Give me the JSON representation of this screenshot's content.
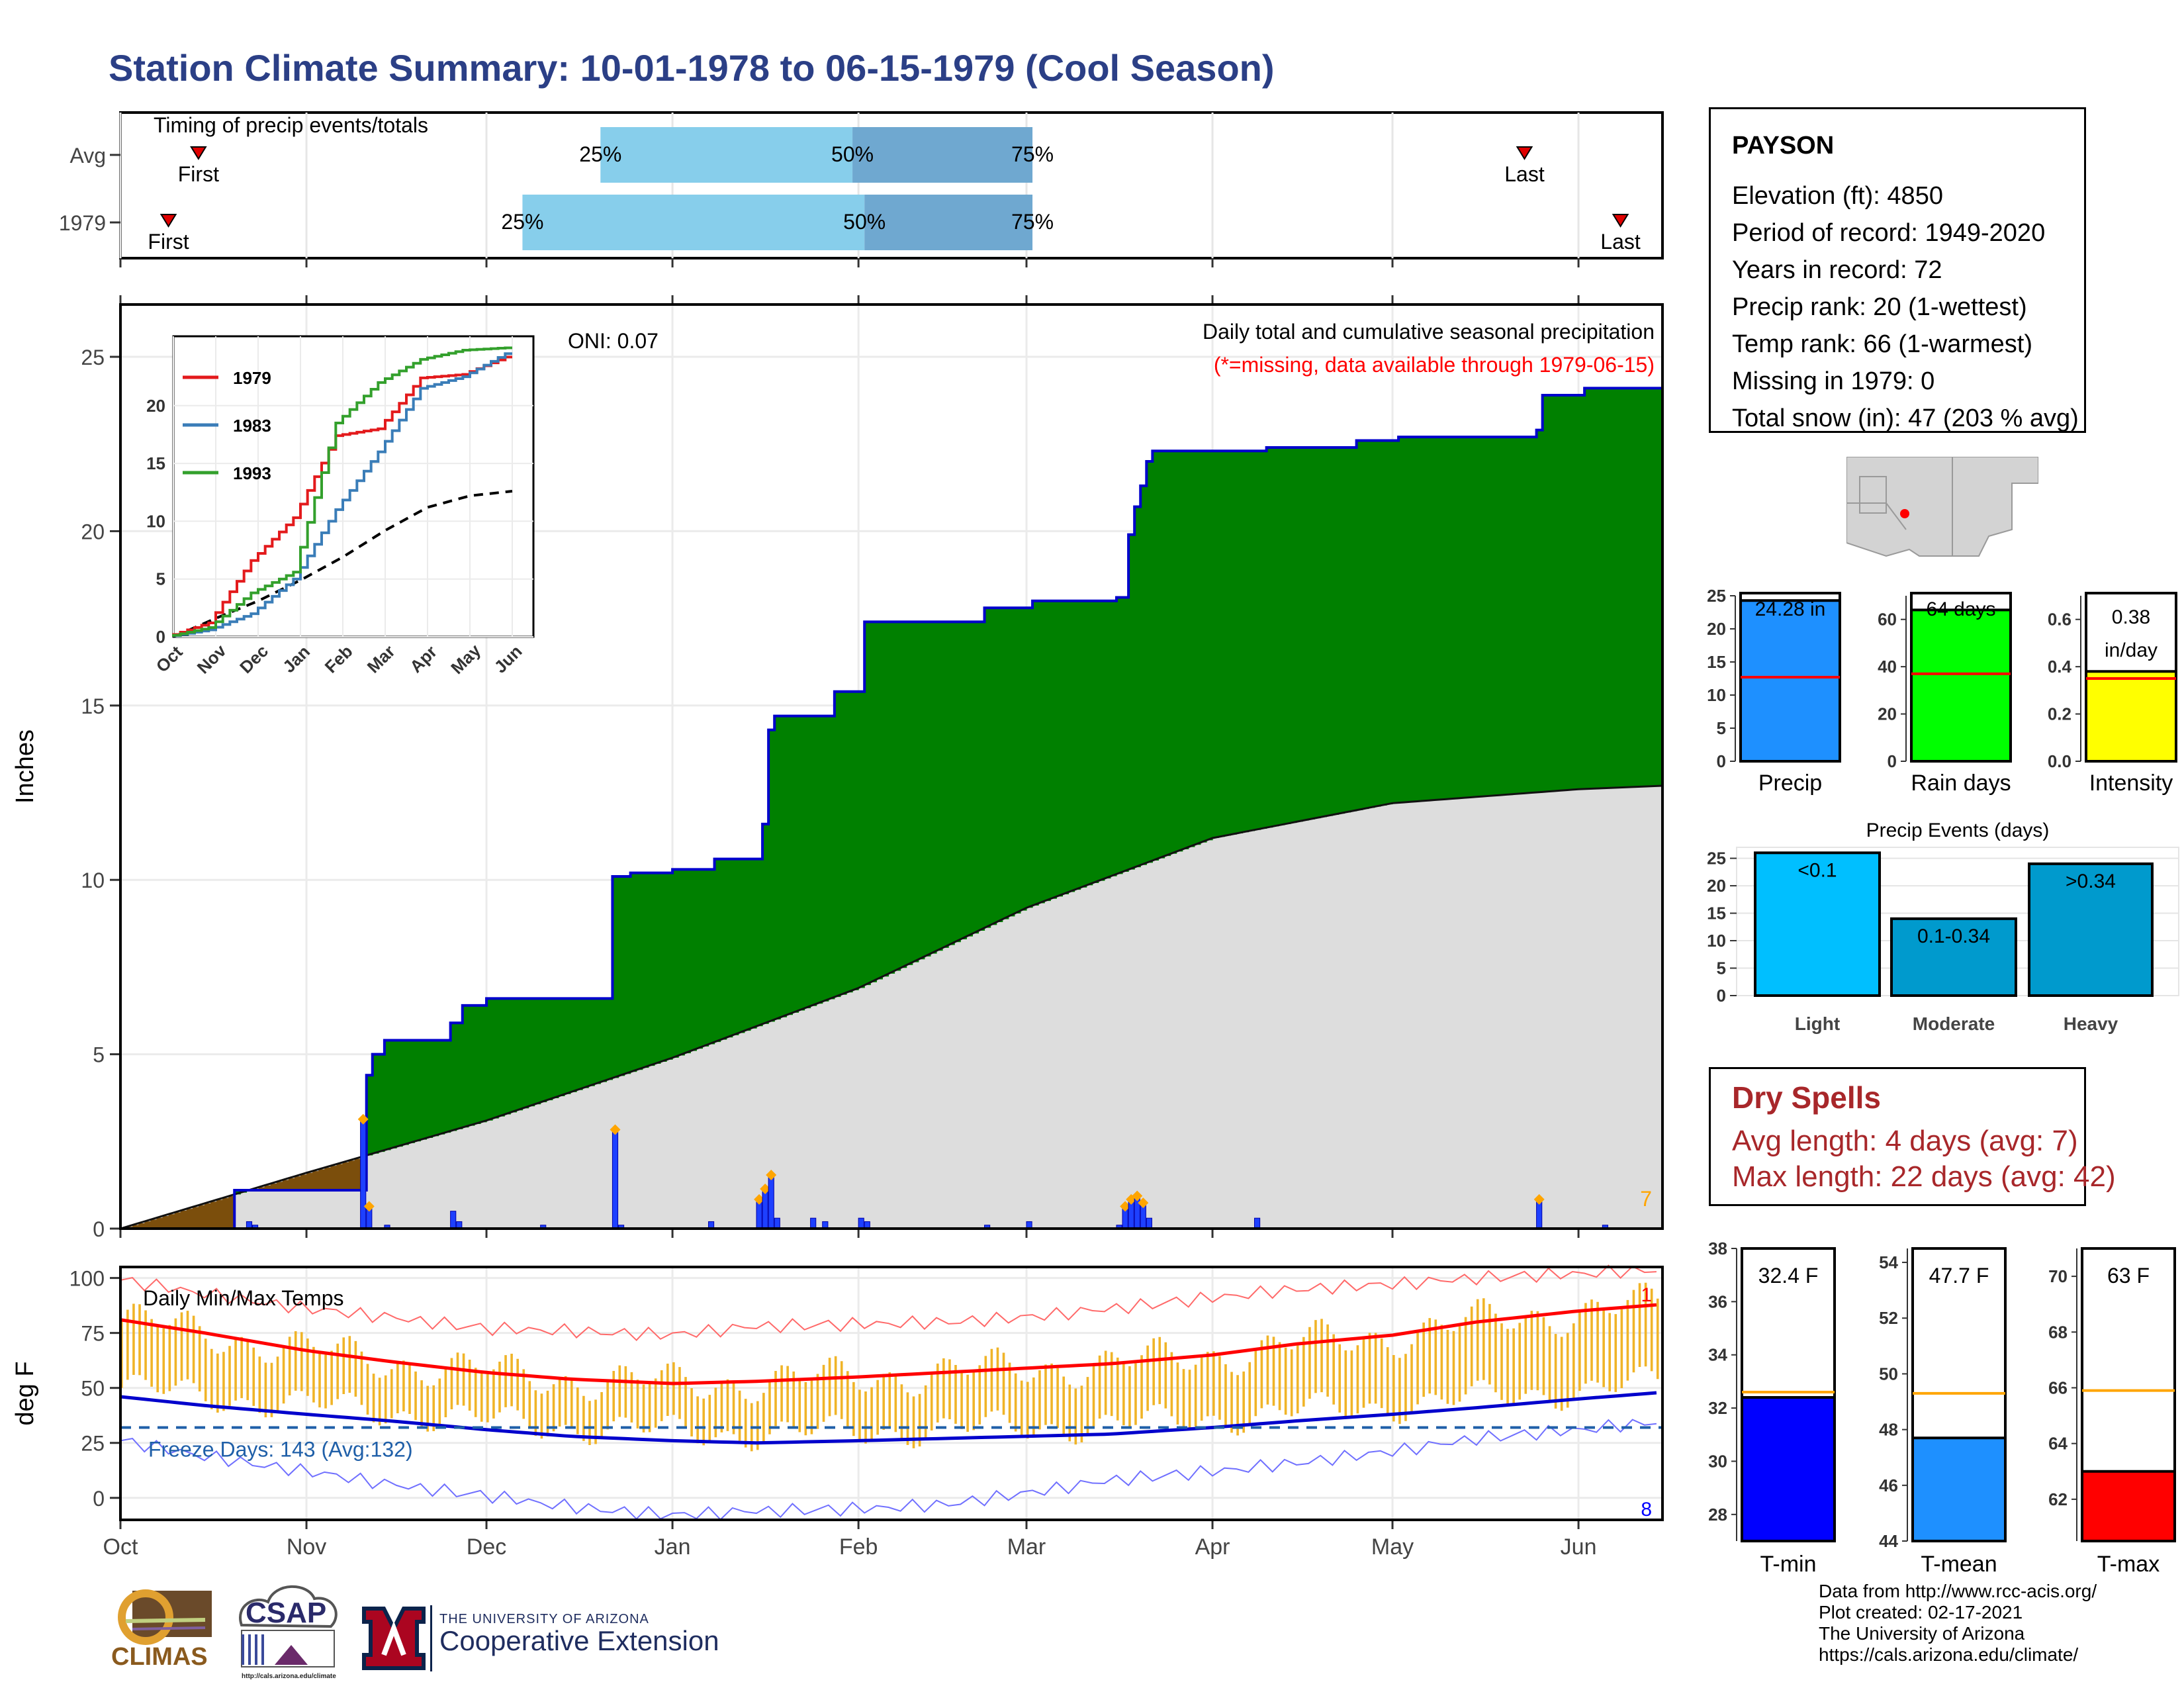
{
  "title": "Station Climate Summary: 10-01-1978 to 06-15-1979 (Cool Season)",
  "colors": {
    "title": "#2b3f86",
    "precip_above": "#008000",
    "precip_deficit": "#7b4e0c",
    "normal_fill": "#dddddd",
    "obs_line": "#0000cc",
    "tmax_line": "#ff0000",
    "tmin_line": "#0000cc",
    "range_bar": "#f0b428",
    "dry_spells": "#a8272a"
  },
  "timing": {
    "title": "Timing of precip events/totals",
    "rows": [
      {
        "label": "Avg",
        "first_label": "First",
        "last_label": "Last"
      },
      {
        "label": "1979",
        "first_label": "First",
        "last_label": "Last"
      }
    ],
    "pct_labels": [
      "25%",
      "50%",
      "75%"
    ]
  },
  "station": {
    "name": "PAYSON",
    "lines": [
      "Elevation (ft): 4850",
      "Period of record: 1949-2020",
      "Years in record: 72",
      "Precip rank: 20 (1-wettest)",
      "Temp rank: 66 (1-warmest)",
      "Missing in 1979: 0",
      "Total snow (in): 47 (203 % avg)"
    ]
  },
  "main_panel": {
    "note": "Daily total and cumulative seasonal precipitation",
    "missing_note": "(*=missing, data available through 1979-06-15)",
    "oni": "ONI: 0.07",
    "ylabel": "Inches",
    "corner_count": "7"
  },
  "inset": {
    "legend": [
      "1979",
      "1983",
      "1993"
    ],
    "series_colors": [
      "#e31a1c",
      "#3a7db8",
      "#33a02c"
    ]
  },
  "temp_panel": {
    "title": "Daily Min/Max Temps",
    "ylabel": "deg F",
    "freeze_label": "Freeze Days: 143 (Avg:132)",
    "count_high": "1",
    "count_low": "8"
  },
  "x_months": [
    "Oct",
    "Nov",
    "Dec",
    "Jan",
    "Feb",
    "Mar",
    "Apr",
    "May",
    "Jun"
  ],
  "inset_months": [
    "Oct",
    "Nov",
    "Dec",
    "Jan",
    "Feb",
    "Mar",
    "Apr",
    "May",
    "Jun"
  ],
  "summary_bars": [
    {
      "name": "Precip",
      "label": "24.28 in",
      "color": "#1e90ff",
      "value": 24.28,
      "avg": 12.7,
      "ymax": 25,
      "ticks": [
        "0",
        "5",
        "10",
        "15",
        "20",
        "25"
      ]
    },
    {
      "name": "Rain days",
      "label": "64 days",
      "color": "#00ff00",
      "value": 64,
      "avg": 37,
      "ymax": 70,
      "ticks": [
        "0",
        "20",
        "40",
        "60"
      ]
    },
    {
      "name": "Intensity",
      "label_line1": "0.38",
      "label_line2": "in/day",
      "color": "#ffff00",
      "value": 0.38,
      "avg": 0.35,
      "ymax": 0.7,
      "ticks": [
        "0.0",
        "0.2",
        "0.4",
        "0.6"
      ]
    }
  ],
  "precip_events": {
    "title": "Precip Events (days)",
    "categories": [
      "Light",
      "Moderate",
      "Heavy"
    ],
    "labels": [
      "<0.1",
      "0.1-0.34",
      ">0.34"
    ],
    "values": [
      26,
      14,
      24
    ],
    "colors": [
      "#00bfff",
      "#009acd",
      "#009acd"
    ],
    "ticks": [
      "0",
      "5",
      "10",
      "15",
      "20",
      "25"
    ]
  },
  "dry_spells": {
    "title": "Dry Spells",
    "lines": [
      "Avg length: 4 days (avg: 7)",
      "Max length: 22 days (avg: 42)"
    ]
  },
  "temp_bars": [
    {
      "name": "T-min",
      "label": "32.4 F",
      "color": "#0000ff",
      "value": 32.4,
      "avg": 32.6,
      "ylim": [
        27,
        38
      ],
      "ticks": [
        "28",
        "30",
        "32",
        "34",
        "36",
        "38"
      ]
    },
    {
      "name": "T-mean",
      "label": "47.7 F",
      "color": "#1e90ff",
      "value": 47.7,
      "avg": 49.3,
      "ylim": [
        44,
        54.5
      ],
      "ticks": [
        "44",
        "46",
        "48",
        "50",
        "52",
        "54"
      ]
    },
    {
      "name": "T-max",
      "label": "63 F",
      "color": "#ff0000",
      "value": 63.0,
      "avg": 65.9,
      "ylim": [
        60.5,
        71
      ],
      "ticks": [
        "62",
        "64",
        "66",
        "68",
        "70"
      ]
    }
  ],
  "credits": [
    "Data from http://www.rcc-acis.org/",
    "Plot created: 02-17-2021",
    "The University of Arizona",
    "https://cals.arizona.edu/climate/"
  ],
  "logos": {
    "climas": "CLIMAS",
    "csap": "CSAP",
    "csap_url": "http://cals.arizona.edu/climate",
    "ua_line1": "THE UNIVERSITY OF ARIZONA",
    "ua_line2": "Cooperative Extension"
  },
  "chart_data": [
    {
      "type": "bar",
      "title": "Timing of precip events/totals",
      "categories": [
        "Avg",
        "1979"
      ],
      "series": [
        {
          "name": "First",
          "values": [
            "1978-10-14",
            "1978-10-09"
          ]
        },
        {
          "name": "25%",
          "values": [
            "1978-12-20",
            "1978-12-07"
          ]
        },
        {
          "name": "50%",
          "values": [
            "1979-01-31",
            "1979-02-02"
          ]
        },
        {
          "name": "75%",
          "values": [
            "1979-03-02",
            "1979-03-02"
          ]
        },
        {
          "name": "Last",
          "values": [
            "1979-05-23",
            "1979-06-08"
          ]
        }
      ]
    },
    {
      "type": "area",
      "title": "Daily total and cumulative seasonal precipitation",
      "ylabel": "Inches",
      "ylim": [
        0,
        26.5
      ],
      "xlim": [
        "1978-10-01",
        "1979-06-15"
      ],
      "cumulative_observed": {
        "x": [
          "1978-10-01",
          "1978-10-20",
          "1978-11-10",
          "1978-11-11",
          "1978-11-12",
          "1978-11-14",
          "1978-11-25",
          "1978-11-27",
          "1978-12-01",
          "1978-12-10",
          "1978-12-20",
          "1978-12-22",
          "1978-12-25",
          "1979-01-01",
          "1979-01-08",
          "1979-01-15",
          "1979-01-16",
          "1979-01-17",
          "1979-01-18",
          "1979-01-28",
          "1979-02-02",
          "1979-02-08",
          "1979-02-22",
          "1979-03-02",
          "1979-03-16",
          "1979-03-18",
          "1979-03-19",
          "1979-03-20",
          "1979-03-21",
          "1979-03-22",
          "1979-03-25",
          "1979-04-10",
          "1979-04-25",
          "1979-05-02",
          "1979-05-25",
          "1979-05-26",
          "1979-06-02",
          "1979-06-15"
        ],
        "y": [
          0,
          1.1,
          1.1,
          4.4,
          5.0,
          5.4,
          5.9,
          6.4,
          6.6,
          6.6,
          6.6,
          10.1,
          10.2,
          10.3,
          10.6,
          10.6,
          11.6,
          14.3,
          14.7,
          15.4,
          17.4,
          17.4,
          17.8,
          18.0,
          18.1,
          19.9,
          20.7,
          21.3,
          22.0,
          22.3,
          22.3,
          22.4,
          22.6,
          22.7,
          22.9,
          23.9,
          24.1,
          24.28
        ]
      },
      "cumulative_average": {
        "x": [
          "1978-10-01",
          "1978-11-01",
          "1978-12-01",
          "1979-01-01",
          "1979-02-01",
          "1979-03-01",
          "1979-04-01",
          "1979-05-01",
          "1979-06-01",
          "1979-06-15"
        ],
        "y": [
          0,
          1.6,
          3.1,
          4.9,
          6.9,
          9.2,
          11.2,
          12.2,
          12.6,
          12.7
        ]
      },
      "daily_precip": {
        "x": [
          "1978-10-22",
          "1978-10-23",
          "1978-11-10",
          "1978-11-11",
          "1978-11-14",
          "1978-11-25",
          "1978-11-26",
          "1978-12-10",
          "1978-12-22",
          "1978-12-23",
          "1979-01-07",
          "1979-01-15",
          "1979-01-16",
          "1979-01-17",
          "1979-01-18",
          "1979-01-24",
          "1979-01-26",
          "1979-02-01",
          "1979-02-02",
          "1979-02-22",
          "1979-03-01",
          "1979-03-16",
          "1979-03-17",
          "1979-03-18",
          "1979-03-19",
          "1979-03-20",
          "1979-03-21",
          "1979-04-08",
          "1979-05-25",
          "1979-06-05"
        ],
        "y": [
          0.2,
          0.1,
          3.1,
          0.6,
          0.1,
          0.5,
          0.2,
          0.1,
          2.8,
          0.1,
          0.2,
          0.8,
          1.1,
          1.5,
          0.3,
          0.3,
          0.2,
          0.3,
          0.2,
          0.1,
          0.2,
          0.1,
          0.6,
          0.8,
          0.9,
          0.7,
          0.3,
          0.3,
          0.8,
          0.1
        ]
      }
    },
    {
      "type": "line",
      "title": "",
      "x": [
        "Oct",
        "Nov",
        "Dec",
        "Jan",
        "Feb",
        "Mar",
        "Apr",
        "May",
        "Jun"
      ],
      "ylim": [
        0,
        26
      ],
      "series": [
        {
          "name": "1979",
          "values": [
            0,
            1.2,
            6.6,
            10.3,
            17.4,
            18.0,
            22.4,
            22.7,
            24.2
          ]
        },
        {
          "name": "1983",
          "values": [
            0,
            0.6,
            2.0,
            5.0,
            11.0,
            16.0,
            21.5,
            22.5,
            24.5
          ]
        },
        {
          "name": "1993",
          "values": [
            0,
            0.8,
            3.8,
            5.6,
            18.5,
            22.0,
            24.0,
            24.8,
            25.0
          ]
        }
      ],
      "average": [
        0,
        1.6,
        3.1,
        4.9,
        6.9,
        9.2,
        11.2,
        12.2,
        12.6
      ]
    },
    {
      "type": "line",
      "title": "Daily Min/Max Temps",
      "ylabel": "deg F",
      "ylim": [
        -10,
        105
      ],
      "x": [
        "1978-10-01",
        "1978-10-15",
        "1978-11-01",
        "1978-11-15",
        "1978-12-01",
        "1978-12-15",
        "1979-01-01",
        "1979-01-15",
        "1979-02-01",
        "1979-02-15",
        "1979-03-01",
        "1979-03-15",
        "1979-04-01",
        "1979-04-15",
        "1979-05-01",
        "1979-05-15",
        "1979-06-01",
        "1979-06-15"
      ],
      "series": [
        {
          "name": "Avg max",
          "values": [
            81,
            75,
            67,
            62,
            57,
            54,
            52,
            53,
            55,
            57,
            59,
            61,
            65,
            70,
            74,
            80,
            85,
            88
          ]
        },
        {
          "name": "Avg min",
          "values": [
            46,
            42,
            38,
            35,
            31,
            28,
            26,
            25,
            26,
            27,
            28,
            29,
            32,
            35,
            38,
            41,
            45,
            48
          ]
        },
        {
          "name": "Record max",
          "values": [
            99,
            93,
            86,
            82,
            77,
            76,
            74,
            78,
            79,
            80,
            82,
            86,
            91,
            95,
            97,
            100,
            102,
            104
          ]
        },
        {
          "name": "Record min",
          "values": [
            26,
            19,
            12,
            6,
            1,
            -4,
            -8,
            -6,
            -5,
            -3,
            2,
            8,
            12,
            16,
            21,
            27,
            31,
            35
          ]
        }
      ],
      "freeze_line": 32
    },
    {
      "type": "bar",
      "title": "",
      "categories": [
        "Precip",
        "Rain days",
        "Intensity"
      ],
      "values": [
        24.28,
        64,
        0.38
      ],
      "averages": [
        12.7,
        37,
        0.35
      ]
    },
    {
      "type": "bar",
      "title": "Precip Events (days)",
      "categories": [
        "Light",
        "Moderate",
        "Heavy"
      ],
      "values": [
        26,
        14,
        24
      ],
      "ylim": [
        0,
        27
      ]
    },
    {
      "type": "bar",
      "title": "",
      "categories": [
        "T-min",
        "T-mean",
        "T-max"
      ],
      "values": [
        32.4,
        47.7,
        63.0
      ],
      "averages": [
        32.6,
        49.3,
        65.9
      ]
    }
  ]
}
